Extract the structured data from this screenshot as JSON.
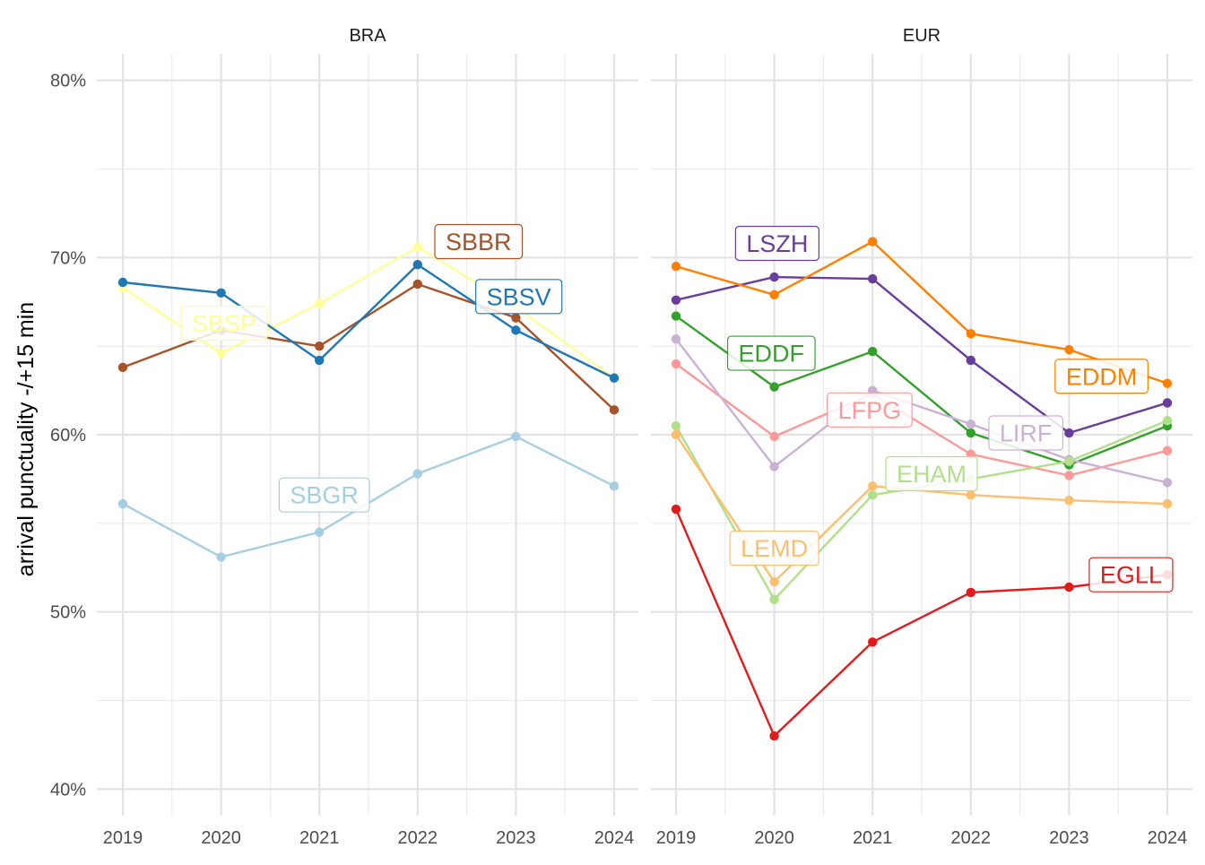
{
  "chart_data": {
    "type": "line",
    "ylabel": "arrival punctuality -/+15 min",
    "xlabel": "",
    "y_format": "percent",
    "ylim": [
      0.385,
      0.815
    ],
    "yticks": [
      0.4,
      0.5,
      0.6,
      0.7,
      0.8
    ],
    "yticks_labels": [
      "40%",
      "50%",
      "60%",
      "70%",
      "80%"
    ],
    "x": [
      2019,
      2020,
      2021,
      2022,
      2023,
      2024
    ],
    "x_labels": [
      "2019",
      "2020",
      "2021",
      "2022",
      "2023",
      "2024"
    ],
    "grid": true,
    "legend": "direct labels",
    "panels": [
      {
        "title": "BRA",
        "series": [
          {
            "name": "SBGR",
            "color": "#a6cee3",
            "values": [
              0.561,
              0.531,
              0.545,
              0.578,
              0.599,
              0.571
            ],
            "label_year": 2021.05,
            "label_y": 0.566
          },
          {
            "name": "SBSP",
            "color": "#ffff99",
            "values": [
              0.683,
              0.646,
              0.674,
              0.706,
              0.672,
              0.632
            ],
            "label_year": 2020.03,
            "label_y": 0.663
          },
          {
            "name": "SBBR",
            "color": "#a6522a",
            "values": [
              0.638,
              0.659,
              0.65,
              0.685,
              0.666,
              0.614
            ],
            "label_year": 2022.62,
            "label_y": 0.709
          },
          {
            "name": "SBSV",
            "color": "#1f78b4",
            "values": [
              0.686,
              0.68,
              0.642,
              0.696,
              0.659,
              0.632
            ],
            "label_year": 2023.03,
            "label_y": 0.678
          }
        ]
      },
      {
        "title": "EUR",
        "series": [
          {
            "name": "LSZH",
            "color": "#6a3d9a",
            "values": [
              0.676,
              0.689,
              0.688,
              0.642,
              0.601,
              0.618
            ],
            "label_year": 2020.03,
            "label_y": 0.708
          },
          {
            "name": "EDDM",
            "color": "#ff7f00",
            "values": [
              0.695,
              0.679,
              0.709,
              0.657,
              0.648,
              0.629
            ],
            "label_year": 2023.33,
            "label_y": 0.633
          },
          {
            "name": "EDDF",
            "color": "#33a02c",
            "values": [
              0.667,
              0.627,
              0.647,
              0.601,
              0.583,
              0.605
            ],
            "label_year": 2019.97,
            "label_y": 0.646
          },
          {
            "name": "LFPG",
            "color": "#fb9a99",
            "values": [
              0.64,
              0.599,
              0.623,
              0.589,
              0.577,
              0.591
            ],
            "label_year": 2020.97,
            "label_y": 0.614
          },
          {
            "name": "LIRF",
            "color": "#cab2d6",
            "values": [
              0.654,
              0.582,
              0.625,
              0.606,
              0.586,
              0.573
            ],
            "label_year": 2022.56,
            "label_y": 0.601
          },
          {
            "name": "EHAM",
            "color": "#b2df8a",
            "values": [
              0.605,
              0.507,
              0.566,
              0.575,
              0.585,
              0.608
            ],
            "label_year": 2021.6,
            "label_y": 0.578
          },
          {
            "name": "LEMD",
            "color": "#fdbf6f",
            "values": [
              0.6,
              0.517,
              0.571,
              0.566,
              0.563,
              0.561
            ],
            "label_year": 2020.0,
            "label_y": 0.536
          },
          {
            "name": "EGLL",
            "color": "#e31a1c",
            "values": [
              0.558,
              0.43,
              0.483,
              0.511,
              0.514,
              0.521
            ],
            "label_year": 2023.63,
            "label_y": 0.521
          }
        ]
      }
    ]
  }
}
